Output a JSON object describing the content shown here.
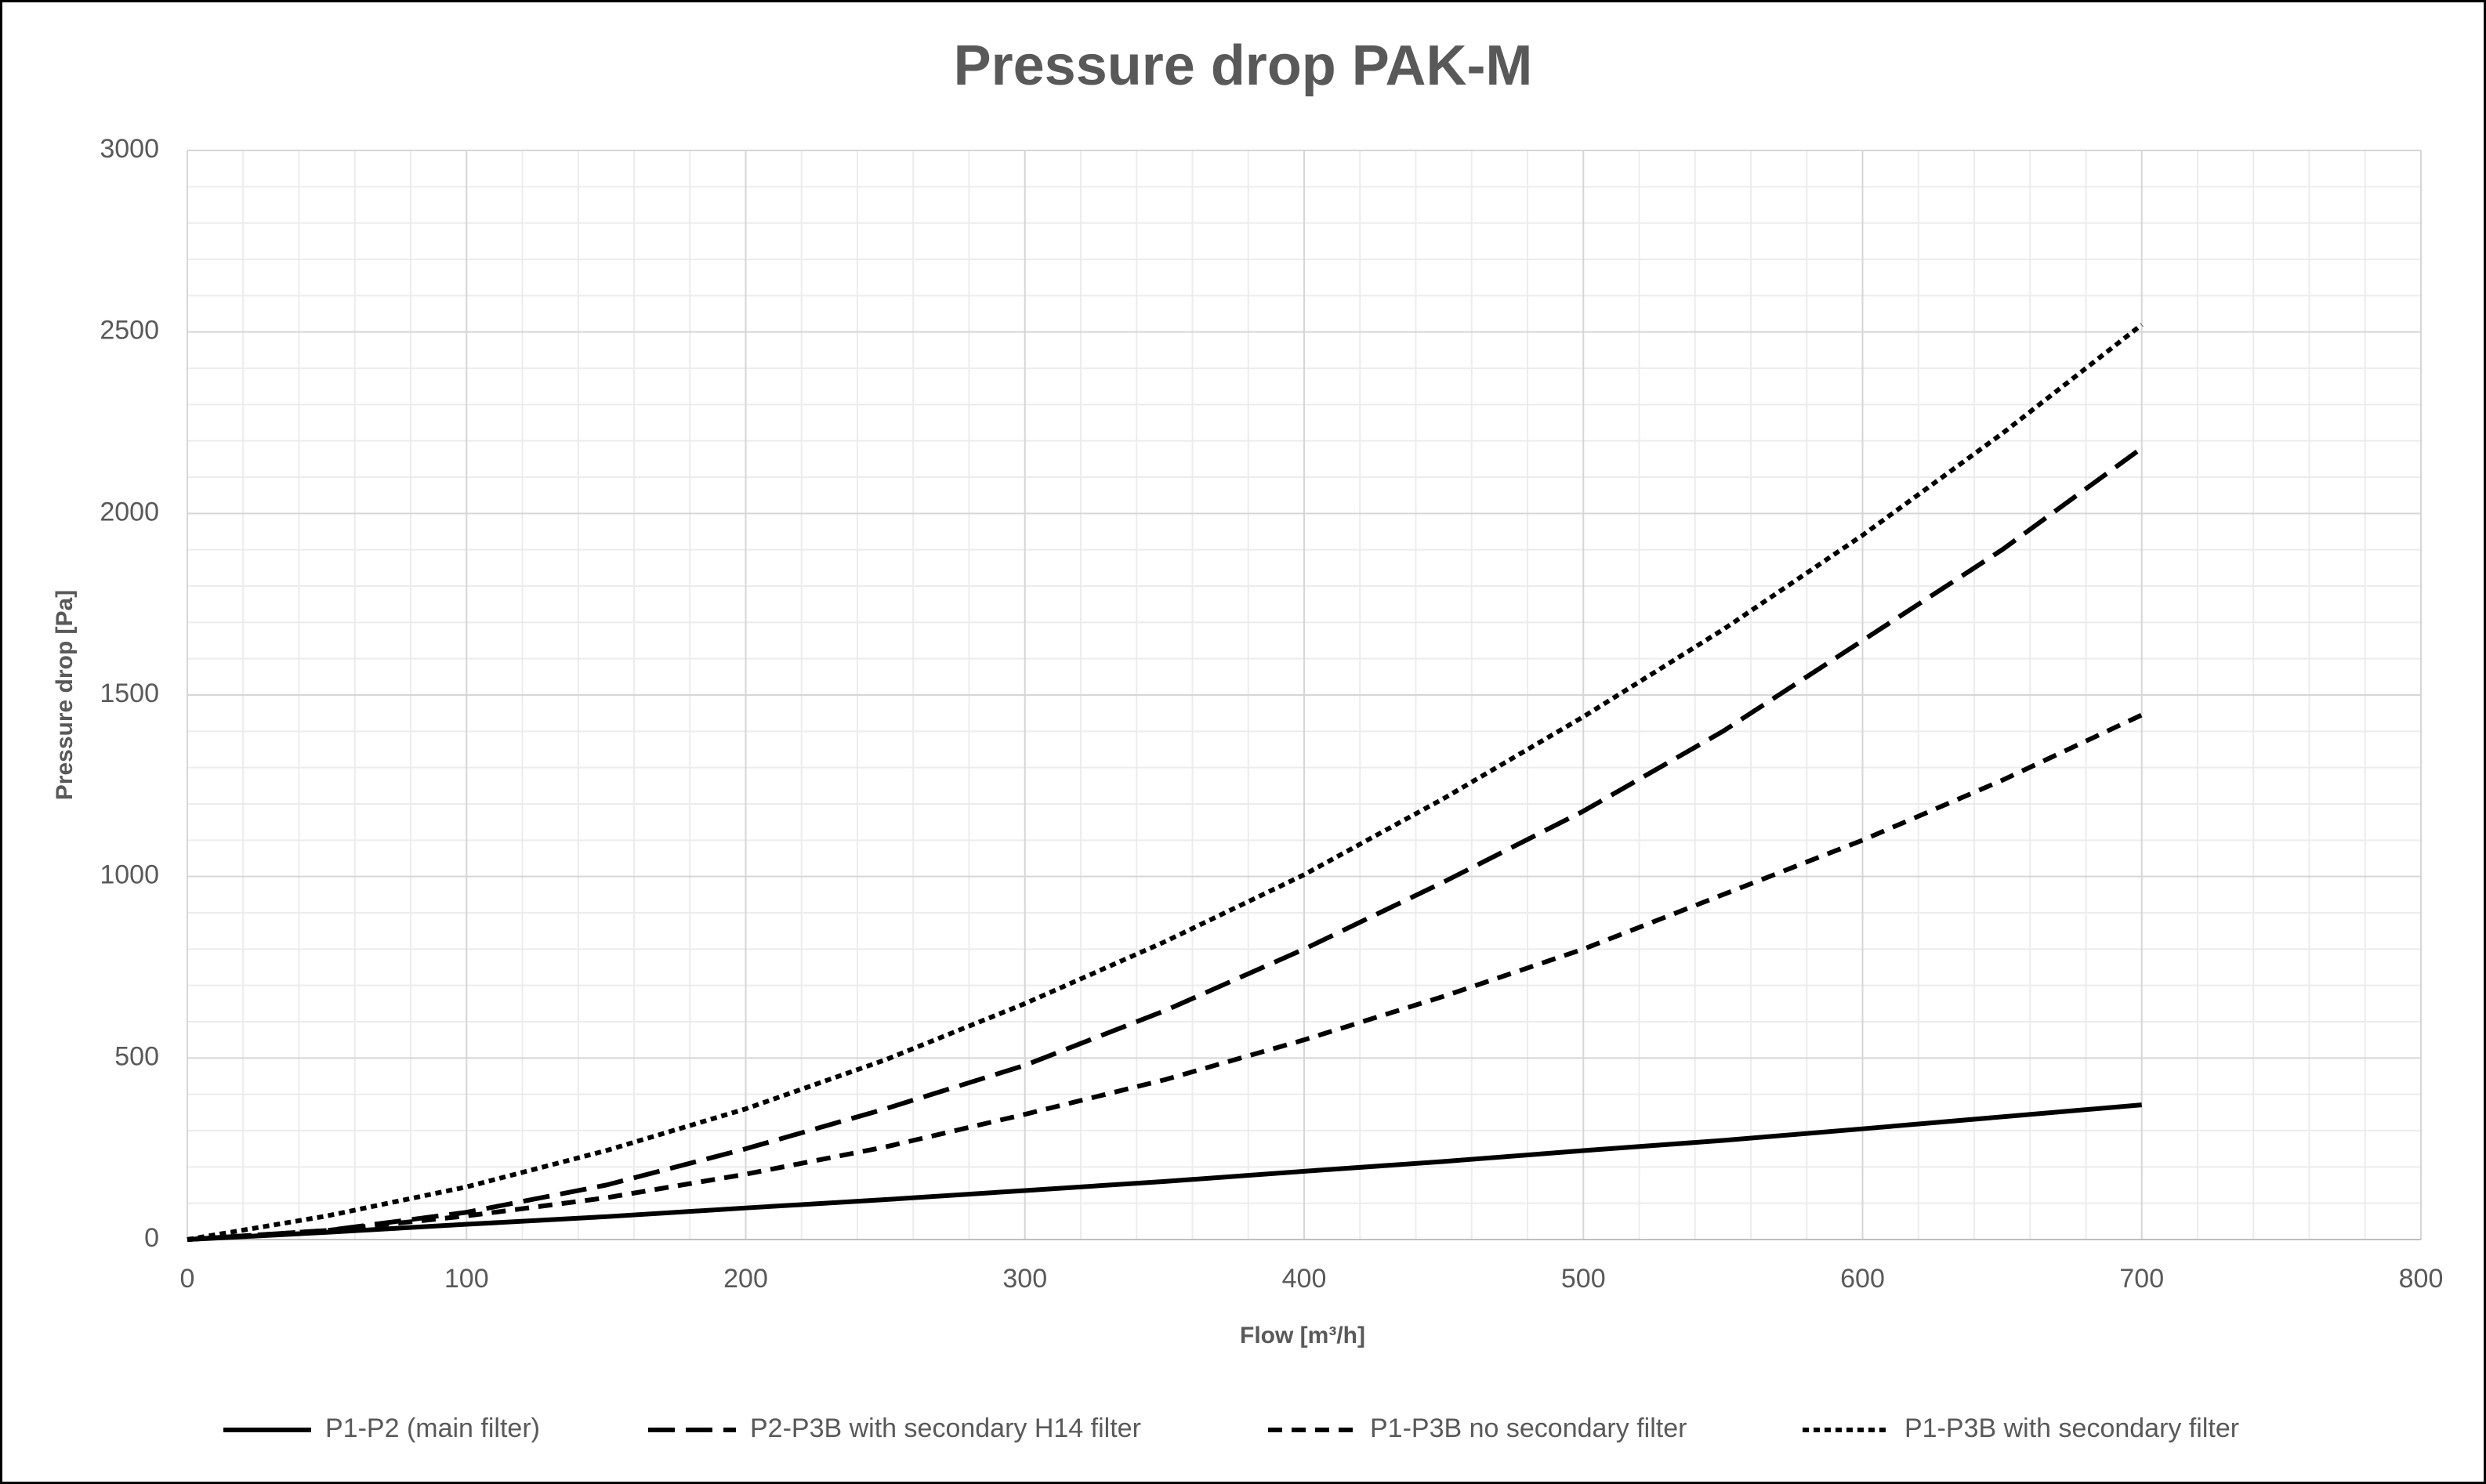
{
  "chart_data": {
    "type": "line",
    "title": "Pressure drop PAK-M",
    "x_label": "Flow [m³/h]",
    "y_label": "Pressure drop [Pa]",
    "x": [
      0,
      50,
      100,
      150,
      200,
      250,
      300,
      350,
      400,
      450,
      500,
      550,
      600,
      650,
      700
    ],
    "series": [
      {
        "name": "P1-P2 (main filter)",
        "color": "#000000",
        "dash": "solid",
        "values": [
          0,
          20,
          42,
          63,
          87,
          110,
          135,
          160,
          188,
          215,
          245,
          273,
          305,
          338,
          371
        ]
      },
      {
        "name": "P2-P3B with secondary H14 filter",
        "color": "#000000",
        "dash": "long-dash",
        "values": [
          0,
          25,
          75,
          150,
          250,
          360,
          480,
          630,
          800,
          985,
          1180,
          1400,
          1650,
          1900,
          2180
        ]
      },
      {
        "name": "P1-P3B no secondary filter",
        "color": "#000000",
        "dash": "dash",
        "values": [
          0,
          25,
          65,
          115,
          180,
          255,
          345,
          440,
          550,
          670,
          800,
          950,
          1100,
          1265,
          1445
        ]
      },
      {
        "name": "P1-P3B with secondary filter",
        "color": "#000000",
        "dash": "dot",
        "values": [
          0,
          65,
          145,
          245,
          360,
          495,
          650,
          820,
          1005,
          1215,
          1440,
          1680,
          1940,
          2220,
          2520
        ]
      }
    ],
    "xlim": [
      0,
      800
    ],
    "xticks": [
      0,
      100,
      200,
      300,
      400,
      500,
      600,
      700,
      800
    ],
    "ylim": [
      0,
      3000
    ],
    "yticks": [
      0,
      500,
      1000,
      1500,
      2000,
      2500,
      3000
    ],
    "grid": true,
    "minor_grid": true,
    "legend": "bottom"
  }
}
